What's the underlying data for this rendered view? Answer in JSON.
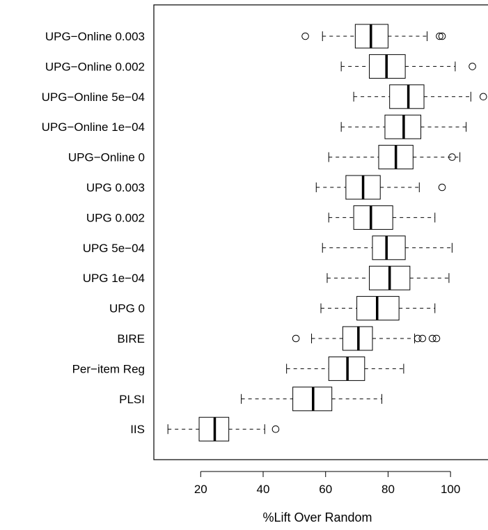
{
  "chart_data": {
    "type": "boxplot",
    "orientation": "horizontal",
    "title": "",
    "xlabel": "%Lift Over Random",
    "ylabel": "",
    "xlim": [
      5,
      112
    ],
    "xticks": [
      20,
      40,
      60,
      80,
      100
    ],
    "categories": [
      "UPG−Online 0.003",
      "UPG−Online 0.002",
      "UPG−Online 5e−04",
      "UPG−Online 1e−04",
      "UPG−Online 0",
      "UPG 0.003",
      "UPG 0.002",
      "UPG 5e−04",
      "UPG 1e−04",
      "UPG 0",
      "BIRE",
      "Per−item Reg",
      "PLSI",
      "IIS"
    ],
    "boxes": [
      {
        "whisker_low": 59,
        "q1": 69.5,
        "median": 74.5,
        "q3": 80,
        "whisker_high": 92.5,
        "outliers": [
          53.5,
          96.5,
          97.3
        ]
      },
      {
        "whisker_low": 65,
        "q1": 74,
        "median": 79.5,
        "q3": 85.5,
        "whisker_high": 101.5,
        "outliers": [
          107
        ]
      },
      {
        "whisker_low": 69,
        "q1": 80.5,
        "median": 86.5,
        "q3": 91.5,
        "whisker_high": 106.5,
        "outliers": [
          110.5
        ]
      },
      {
        "whisker_low": 65,
        "q1": 79,
        "median": 85,
        "q3": 90.5,
        "whisker_high": 105,
        "outliers": []
      },
      {
        "whisker_low": 61,
        "q1": 77,
        "median": 82.5,
        "q3": 88,
        "whisker_high": 103,
        "outliers": [
          100.5
        ]
      },
      {
        "whisker_low": 57,
        "q1": 66.5,
        "median": 72,
        "q3": 77.5,
        "whisker_high": 90,
        "outliers": [
          97.3
        ]
      },
      {
        "whisker_low": 61,
        "q1": 69,
        "median": 74.5,
        "q3": 81.5,
        "whisker_high": 95,
        "outliers": []
      },
      {
        "whisker_low": 59,
        "q1": 75,
        "median": 79.5,
        "q3": 85.5,
        "whisker_high": 100.5,
        "outliers": []
      },
      {
        "whisker_low": 60.5,
        "q1": 74,
        "median": 80.5,
        "q3": 87,
        "whisker_high": 99.5,
        "outliers": []
      },
      {
        "whisker_low": 58.5,
        "q1": 70,
        "median": 76.5,
        "q3": 83.5,
        "whisker_high": 95,
        "outliers": []
      },
      {
        "whisker_low": 55.5,
        "q1": 65.5,
        "median": 70.5,
        "q3": 75,
        "whisker_high": 88.5,
        "outliers": [
          50.5,
          89.5,
          91,
          94.2,
          95.5
        ]
      },
      {
        "whisker_low": 47.5,
        "q1": 61,
        "median": 67,
        "q3": 72.5,
        "whisker_high": 85,
        "outliers": []
      },
      {
        "whisker_low": 33,
        "q1": 49.5,
        "median": 56,
        "q3": 62,
        "whisker_high": 78,
        "outliers": []
      },
      {
        "whisker_low": 9.5,
        "q1": 19.5,
        "median": 24.5,
        "q3": 29,
        "whisker_high": 40.5,
        "outliers": [
          44
        ]
      }
    ],
    "grid": false,
    "legend": "none"
  }
}
